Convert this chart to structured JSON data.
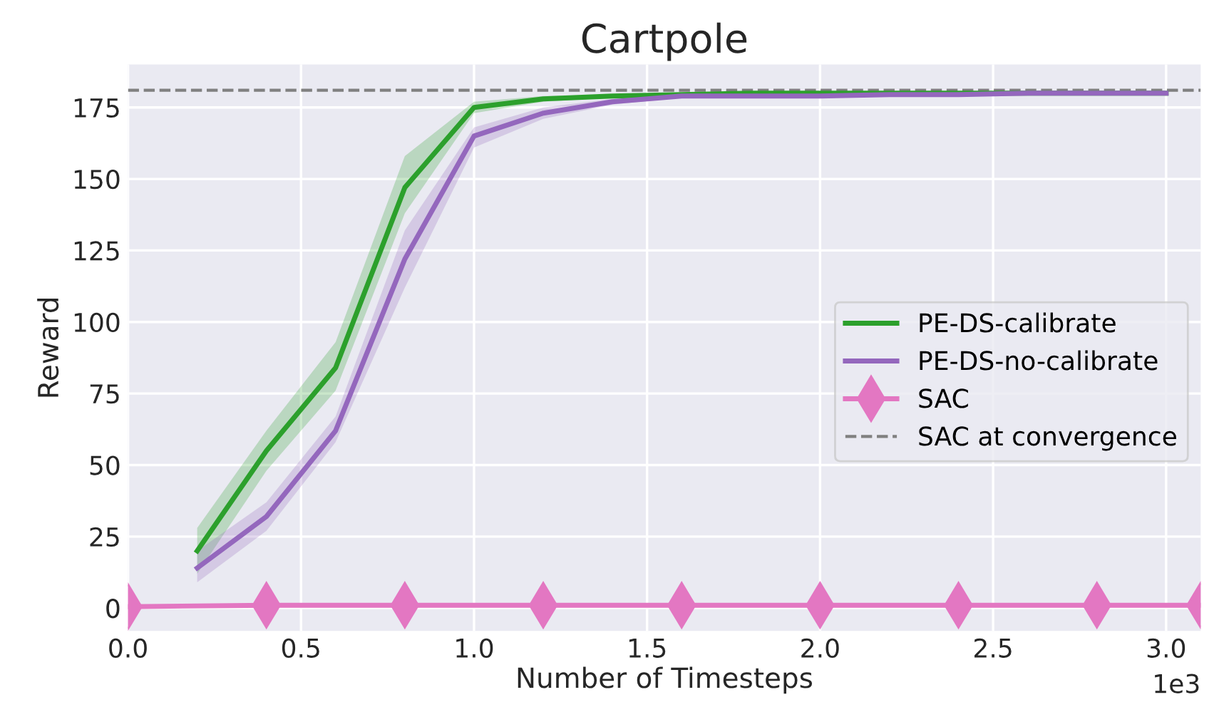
{
  "chart_data": {
    "type": "line",
    "title": "Cartpole",
    "xlabel": "Number of Timesteps",
    "ylabel": "Reward",
    "annotations": [
      "1e3"
    ],
    "series": [
      {
        "name": "PE-DS-calibrate",
        "color": "#2ca02c",
        "marker": "none",
        "x": [
          0.2,
          0.4,
          0.6,
          0.8,
          1.0,
          1.2,
          1.4,
          1.6,
          1.8,
          2.0,
          2.2,
          2.4,
          2.6,
          2.8,
          3.0
        ],
        "values": [
          20,
          55,
          84,
          147,
          175,
          178,
          179,
          179.5,
          180,
          180,
          180,
          180,
          180,
          180,
          180
        ],
        "lower": [
          12,
          48,
          76,
          138,
          173,
          177,
          178.5,
          179,
          179.5,
          179.5,
          179.5,
          179.5,
          179.5,
          179.5,
          179.5
        ],
        "upper": [
          28,
          62,
          93,
          158,
          177,
          179,
          179.5,
          180,
          180.5,
          180.5,
          180.5,
          180.5,
          180.5,
          180.5,
          180.5
        ]
      },
      {
        "name": "PE-DS-no-calibrate",
        "color": "#9467bd",
        "marker": "none",
        "x": [
          0.2,
          0.4,
          0.6,
          0.8,
          1.0,
          1.2,
          1.4,
          1.6,
          1.8,
          2.0,
          2.2,
          2.4,
          2.6,
          2.8,
          3.0
        ],
        "values": [
          14,
          32,
          62,
          122,
          165,
          173,
          177,
          179,
          179,
          179,
          179.5,
          179.5,
          180,
          180,
          180
        ],
        "lower": [
          9,
          27,
          58,
          112,
          161,
          171,
          176,
          178.5,
          178.5,
          178.5,
          179,
          179,
          179.5,
          179.5,
          179.5
        ],
        "upper": [
          20,
          37,
          67,
          132,
          168,
          175,
          178,
          179.5,
          179.5,
          179.5,
          180,
          180,
          180.5,
          180.5,
          180.5
        ]
      },
      {
        "name": "SAC",
        "color": "#e377c2",
        "marker": "diamond",
        "x": [
          0,
          0.4,
          0.8,
          1.2,
          1.6,
          2.0,
          2.4,
          2.8,
          3.1
        ],
        "values": [
          0.5,
          1,
          1,
          1,
          1,
          1,
          1,
          1,
          1
        ]
      }
    ],
    "ref_lines": [
      {
        "axis": "y",
        "value": 181,
        "label": "SAC at convergence",
        "color": "#808080",
        "line_style": "dashed"
      }
    ],
    "xlim": [
      0,
      3.1
    ],
    "ylim": [
      -8,
      190
    ],
    "xticks": [
      {
        "value": 0,
        "label": "0.0"
      },
      0.5,
      {
        "value": 1,
        "label": "1.0"
      },
      1.5,
      {
        "value": 2,
        "label": "2.0"
      },
      2.5,
      {
        "value": 3,
        "label": "3.0"
      }
    ],
    "yticks": [
      0,
      25,
      50,
      75,
      100,
      125,
      150,
      175
    ],
    "grid": true,
    "legend": "right"
  }
}
